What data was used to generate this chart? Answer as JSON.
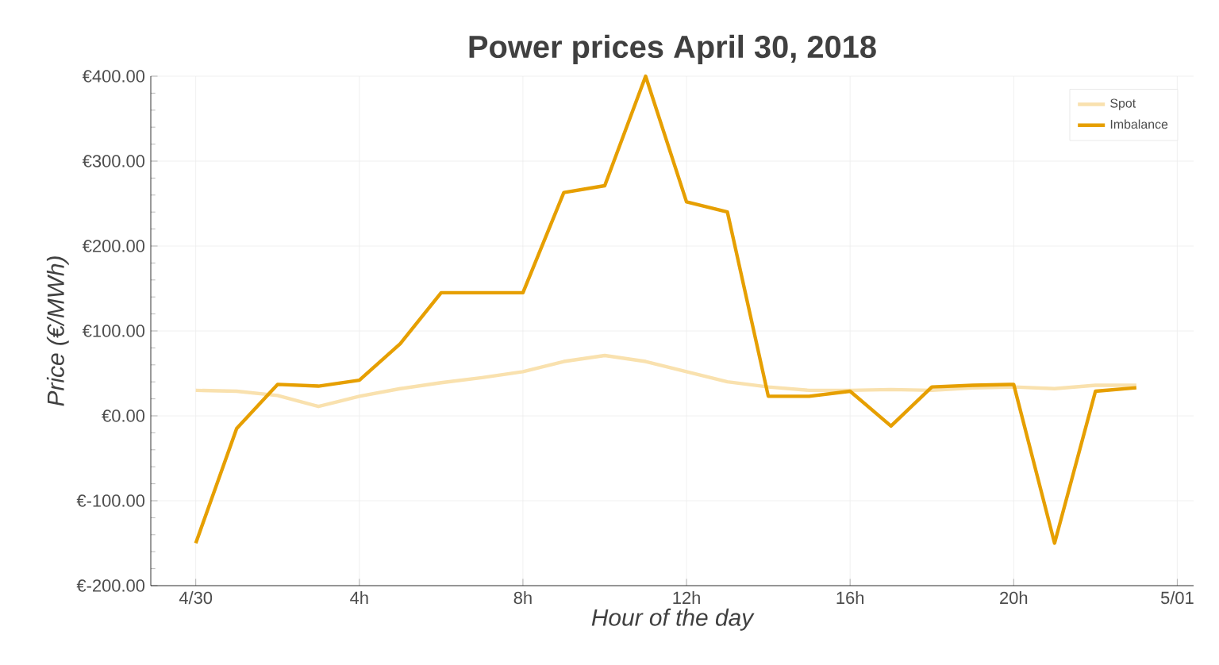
{
  "chart_data": {
    "type": "line",
    "title": "Power prices April 30, 2018",
    "xlabel": "Hour of the day",
    "ylabel": "Price (€/MWh)",
    "x": [
      0,
      1,
      2,
      3,
      4,
      5,
      6,
      7,
      8,
      9,
      10,
      11,
      12,
      13,
      14,
      15,
      16,
      17,
      18,
      19,
      20,
      21,
      22,
      23
    ],
    "series": [
      {
        "name": "Spot",
        "color": "#f9e1ae",
        "values": [
          30,
          29,
          24,
          11,
          23,
          32,
          39,
          45,
          52,
          64,
          71,
          64,
          52,
          40,
          34,
          30,
          30,
          31,
          30,
          33,
          34,
          32,
          36,
          36
        ]
      },
      {
        "name": "Imbalance",
        "color": "#e69f00",
        "values": [
          -150,
          -15,
          37,
          35,
          42,
          85,
          145,
          145,
          145,
          263,
          271,
          400,
          252,
          240,
          23,
          23,
          29,
          -12,
          34,
          36,
          37,
          -150,
          29,
          33
        ]
      }
    ],
    "xlim": [
      -1.1,
      24.4
    ],
    "ylim": [
      -200,
      400
    ],
    "xticks": [
      {
        "value": 0,
        "label": "4/30"
      },
      {
        "value": 4,
        "label": "4h"
      },
      {
        "value": 8,
        "label": "8h"
      },
      {
        "value": 12,
        "label": "12h"
      },
      {
        "value": 16,
        "label": "16h"
      },
      {
        "value": 20,
        "label": "20h"
      },
      {
        "value": 24,
        "label": "5/01"
      }
    ],
    "yticks": [
      {
        "value": -200,
        "label": "€-200.00"
      },
      {
        "value": -100,
        "label": "€-100.00"
      },
      {
        "value": 0,
        "label": "€0.00"
      },
      {
        "value": 100,
        "label": "€100.00"
      },
      {
        "value": 200,
        "label": "€200.00"
      },
      {
        "value": 300,
        "label": "€300.00"
      },
      {
        "value": 400,
        "label": "€400.00"
      }
    ],
    "grid": true,
    "legend": "top right",
    "marker": "none",
    "line_style": "solid"
  }
}
